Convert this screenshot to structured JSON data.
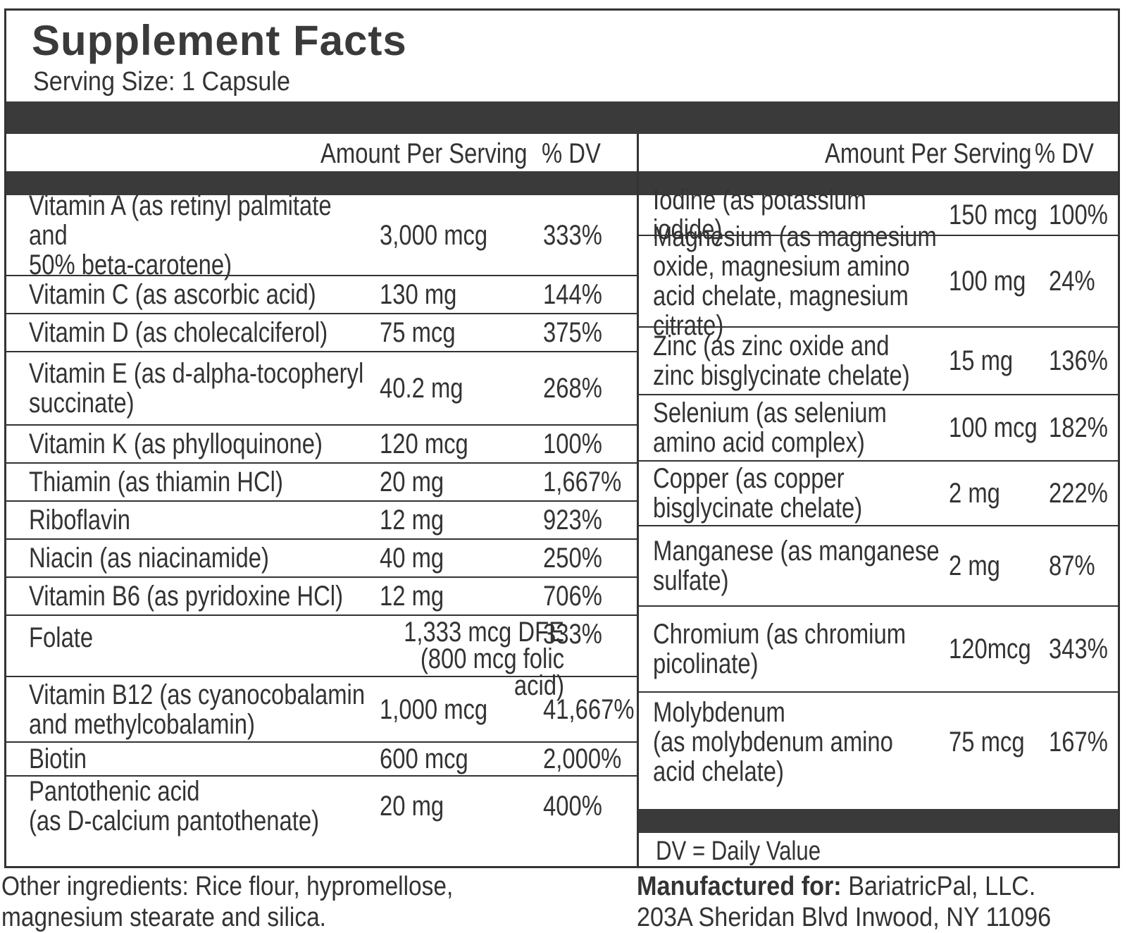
{
  "title": "Supplement Facts",
  "serving_size": "Serving Size: 1 Capsule",
  "header": {
    "amount": "Amount Per Serving",
    "dv": "% DV"
  },
  "left_rows": [
    {
      "name": "Vitamin A (as retinyl palmitate and\n 50% beta-carotene)",
      "amount": "3,000 mcg",
      "dv": "333%"
    },
    {
      "name": "Vitamin C (as ascorbic acid)",
      "amount": "130 mg",
      "dv": "144%"
    },
    {
      "name": "Vitamin D (as cholecalciferol)",
      "amount": "75 mcg",
      "dv": "375%"
    },
    {
      "name": "Vitamin E (as d-alpha-tocopheryl\n succinate)",
      "amount": "40.2 mg",
      "dv": "268%"
    },
    {
      "name": "Vitamin K (as phylloquinone)",
      "amount": "120 mcg",
      "dv": "100%"
    },
    {
      "name": "Thiamin (as thiamin HCl)",
      "amount": "20 mg",
      "dv": "1,667%"
    },
    {
      "name": "Riboflavin",
      "amount": "12 mg",
      "dv": "923%"
    },
    {
      "name": "Niacin (as niacinamide)",
      "amount": "40 mg",
      "dv": "250%"
    },
    {
      "name": "Vitamin B6 (as pyridoxine HCl)",
      "amount": "12 mg",
      "dv": "706%"
    },
    {
      "name": "Folate",
      "amount": "1,333 mcg DFE\n(800 mcg folic acid)",
      "dv": "333%"
    },
    {
      "name": "Vitamin B12 (as cyanocobalamin\n and methylcobalamin)",
      "amount": "1,000 mcg",
      "dv": "41,667%"
    },
    {
      "name": "Biotin",
      "amount": "600 mcg",
      "dv": "2,000%"
    },
    {
      "name": "Pantothenic acid\n (as D-calcium pantothenate)",
      "amount": "20 mg",
      "dv": "400%"
    }
  ],
  "right_rows": [
    {
      "name": "Iodine (as potassium iodide)",
      "amount": "150 mcg",
      "dv": "100%"
    },
    {
      "name": "Magnesium (as magnesium\n oxide, magnesium amino\n acid chelate, magnesium citrate)",
      "amount": "100 mg",
      "dv": "24%"
    },
    {
      "name": "Zinc (as zinc oxide and\n zinc bisglycinate chelate)",
      "amount": "15 mg",
      "dv": "136%"
    },
    {
      "name": "Selenium (as selenium\n amino acid complex)",
      "amount": "100 mcg",
      "dv": "182%"
    },
    {
      "name": "Copper (as copper\n bisglycinate chelate)",
      "amount": "2 mg",
      "dv": "222%"
    },
    {
      "name": "Manganese (as manganese\n sulfate)",
      "amount": "2 mg",
      "dv": "87%"
    },
    {
      "name": "Chromium (as chromium\n picolinate)",
      "amount": "120mcg",
      "dv": "343%"
    },
    {
      "name": "Molybdenum\n (as molybdenum amino\n acid chelate)",
      "amount": "75 mcg",
      "dv": "167%"
    }
  ],
  "dv_note": "DV = Daily Value",
  "other_ingredients": "Other ingredients: Rice flour, hypromellose, magnesium stearate and silica.",
  "manufacturer": {
    "label": "Manufactured for:",
    "name": " BariatricPal, LLC.",
    "address": "203A Sheridan Blvd  Inwood, NY 11096"
  }
}
